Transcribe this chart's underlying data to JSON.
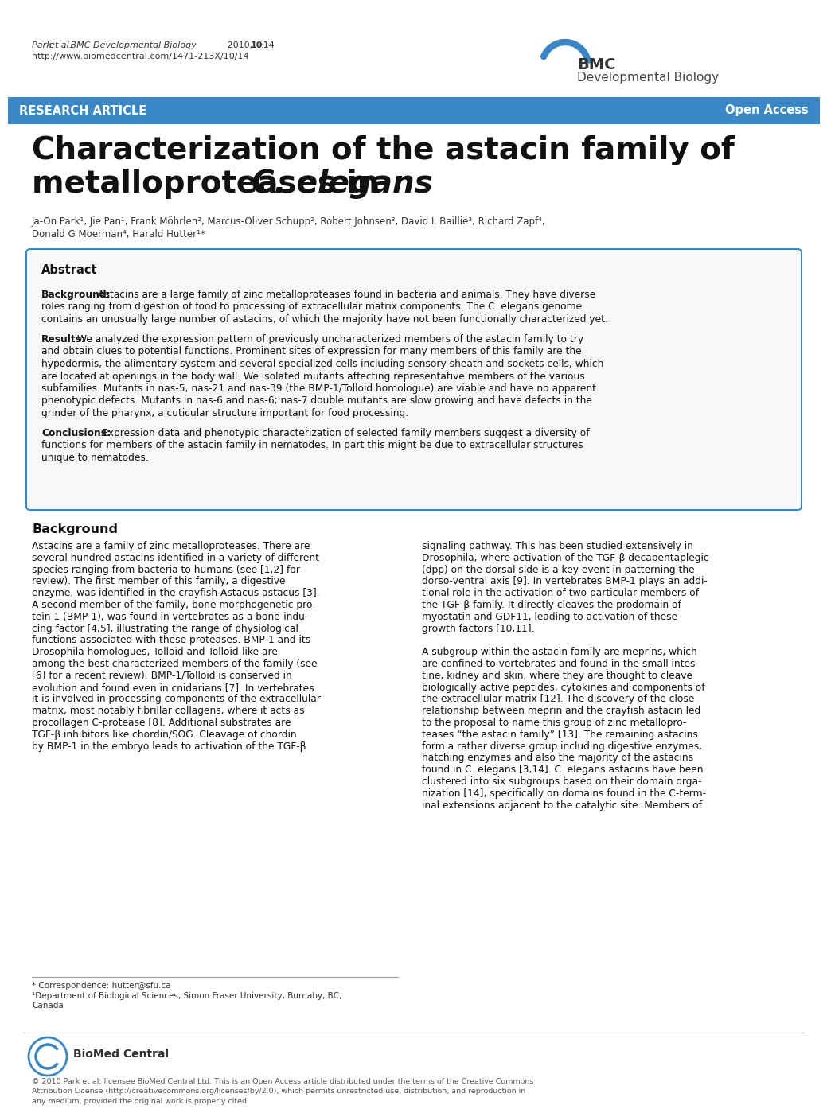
{
  "bg_color": "#ffffff",
  "header_citation_italic": "Park et al. BMC Developmental Biology",
  "header_citation_normal": " 2010, ",
  "header_citation_bold": "10",
  "header_citation_end": ":14",
  "header_url": "http://www.biomedcentral.com/1471-213X/10/14",
  "journal_name_line1": "BMC",
  "journal_name_line2": "Developmental Biology",
  "banner_color": "#3a87c8",
  "banner_text_left": "RESEARCH ARTICLE",
  "banner_text_right": "Open Access",
  "title_line1": "Characterization of the astacin family of",
  "title_line2_normal": "metalloproteases in ",
  "title_line2_italic": "C. elegans",
  "authors_line1": "Ja-On Park¹, Jie Pan¹, Frank Möhrlen², Marcus-Oliver Schupp², Robert Johnsen³, David L Baillie³, Richard Zapf⁴,",
  "authors_line2": "Donald G Moerman⁴, Harald Hutter¹*",
  "abstract_title": "Abstract",
  "abstract_border": "#3a87c8",
  "bg_section_title": "Background",
  "footnote_correspondence": "* Correspondence: hutter@sfu.ca",
  "footnote_dept": "¹Department of Biological Sciences, Simon Fraser University, Burnaby, BC,",
  "footnote_dept2": "Canada",
  "footer_text": "© 2010 Park et al; licensee BioMed Central Ltd. This is an Open Access article distributed under the terms of the Creative Commons\nAttribution License (http://creativecommons.org/licenses/by/2.0), which permits unrestricted use, distribution, and reproduction in\nany medium, provided the original work is properly cited."
}
